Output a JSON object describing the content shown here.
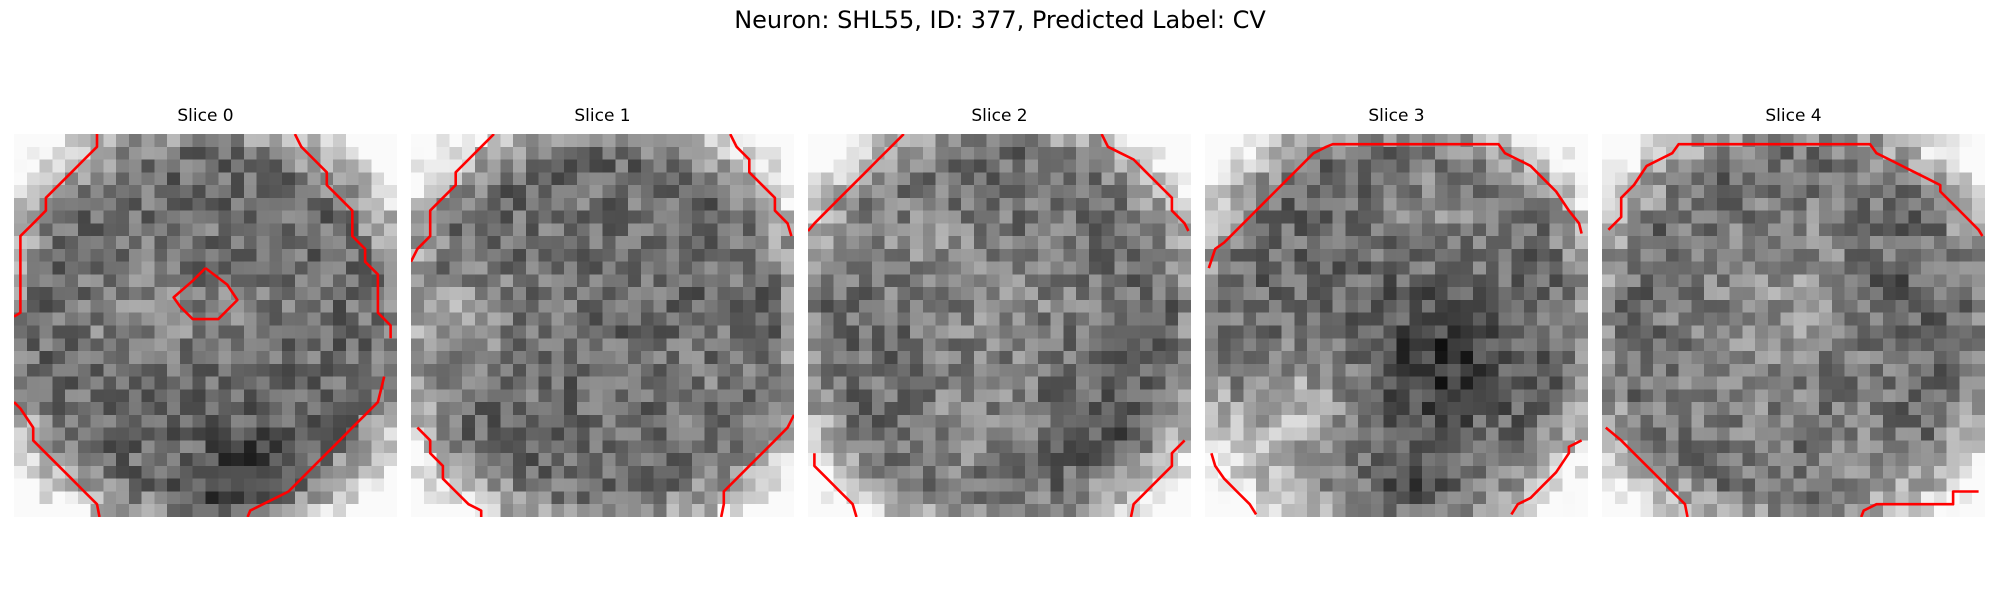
{
  "figure": {
    "title": "Neuron: SHL55, ID: 377, Predicted Label: CV",
    "contour_color": "#ff0000",
    "colormap": "gray",
    "slices": [
      {
        "label": "Slice 0",
        "image": "grayscale-cell-image-slice-0"
      },
      {
        "label": "Slice 1",
        "image": "grayscale-cell-image-slice-1"
      },
      {
        "label": "Slice 2",
        "image": "grayscale-cell-image-slice-2"
      },
      {
        "label": "Slice 3",
        "image": "grayscale-cell-image-slice-3"
      },
      {
        "label": "Slice 4",
        "image": "grayscale-cell-image-slice-4"
      }
    ]
  }
}
